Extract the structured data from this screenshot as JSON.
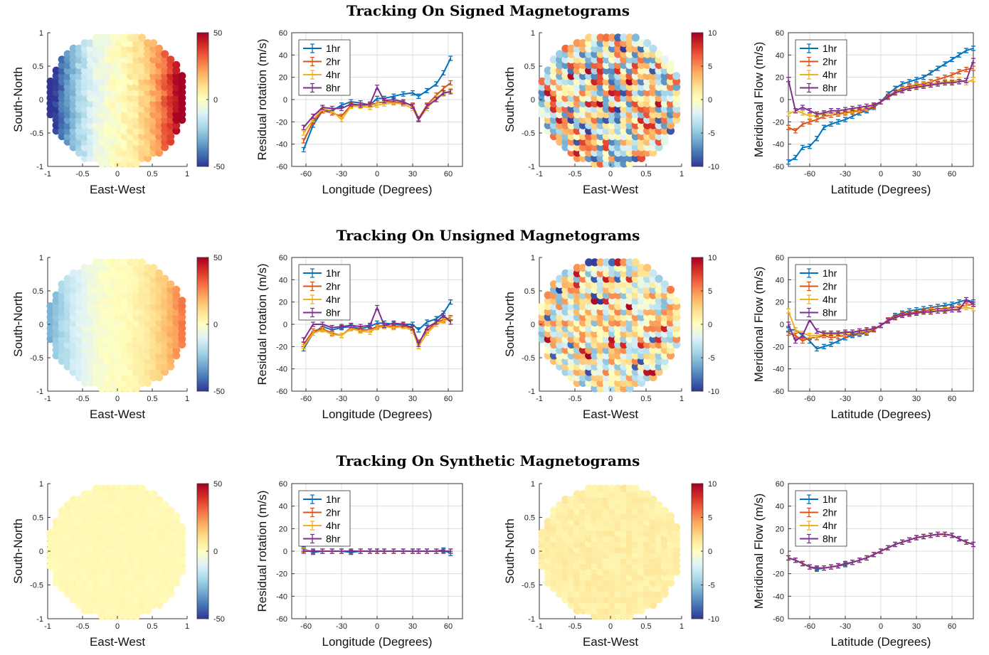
{
  "row_titles": [
    "Tracking On Signed Magnetograms",
    "Tracking On Unsigned Magnetograms",
    "Tracking On Synthetic Magnetograms"
  ],
  "colors": {
    "1hr": "#0072bd",
    "2hr": "#d95319",
    "4hr": "#edb120",
    "8hr": "#7e2f8e"
  },
  "chart_data": [
    {
      "type": "heatmap",
      "title": "Tracking On Signed Magnetograms",
      "xlabel": "East-West",
      "ylabel": "South-North",
      "xlim": [
        -1,
        1
      ],
      "ylim": [
        -1,
        1
      ],
      "xticks": [
        "-1",
        "-0.5",
        "0",
        "0.5",
        "1"
      ],
      "yticks": [
        "1",
        "0.5",
        "0",
        "-0.5",
        "-1"
      ],
      "colorbar_ticks": [
        "50",
        "0",
        "-50"
      ],
      "clim": [
        -50,
        50
      ],
      "pattern": "rotation",
      "amplitude": 50,
      "noise": 0.08
    },
    {
      "type": "line",
      "xlabel": "Longitude (Degrees)",
      "ylabel": "Residual rotation (m/s)",
      "xlim": [
        -72,
        72
      ],
      "ylim": [
        -60,
        60
      ],
      "xticks": [
        "-60",
        "-30",
        "0",
        "30",
        "60"
      ],
      "yticks": [
        "60",
        "40",
        "20",
        "0",
        "-20",
        "-40",
        "-60"
      ],
      "x": [
        -62,
        -54,
        -46,
        -38,
        -30,
        -22,
        -14,
        -6,
        0,
        6,
        14,
        22,
        30,
        35,
        42,
        50,
        56,
        62
      ],
      "series": [
        {
          "name": "1hr",
          "values": [
            -45,
            -23,
            -10,
            -10,
            -5,
            -2,
            -3,
            -5,
            1,
            1,
            3,
            5,
            6,
            3,
            8,
            14,
            24,
            37
          ]
        },
        {
          "name": "2hr",
          "values": [
            -37,
            -20,
            -10,
            -12,
            -15,
            -5,
            -5,
            -5,
            -3,
            -2,
            -2,
            -3,
            -5,
            -17,
            -5,
            4,
            10,
            15
          ]
        },
        {
          "name": "4hr",
          "values": [
            -30,
            -18,
            -8,
            -10,
            -18,
            -6,
            -6,
            -7,
            -5,
            -4,
            -3,
            -4,
            -8,
            -18,
            -8,
            2,
            5,
            8
          ]
        },
        {
          "name": "8hr",
          "values": [
            -25,
            -15,
            -7,
            -8,
            -8,
            -4,
            -5,
            -4,
            11,
            -1,
            0,
            -2,
            -6,
            -18,
            -6,
            0,
            6,
            7
          ]
        }
      ]
    },
    {
      "type": "heatmap",
      "xlabel": "East-West",
      "ylabel": "South-North",
      "xlim": [
        -1,
        1
      ],
      "ylim": [
        -1,
        1
      ],
      "xticks": [
        "-1",
        "-0.5",
        "0",
        "0.5",
        "1"
      ],
      "yticks": [
        "1",
        "0.5",
        "0",
        "-0.5",
        "-1"
      ],
      "colorbar_ticks": [
        "10",
        "5",
        "0",
        "-5",
        "-10"
      ],
      "clim": [
        -10,
        10
      ],
      "pattern": "noise",
      "amplitude": 10,
      "noise": 0.75
    },
    {
      "type": "line",
      "xlabel": "Latitude (Degrees)",
      "ylabel": "Meridional Flow (m/s)",
      "xlim": [
        -78,
        78
      ],
      "ylim": [
        -60,
        60
      ],
      "xticks": [
        "-60",
        "-30",
        "0",
        "30",
        "60"
      ],
      "yticks": [
        "60",
        "40",
        "20",
        "0",
        "-20",
        "-40",
        "-60"
      ],
      "x": [
        -78,
        -72,
        -66,
        -60,
        -54,
        -48,
        -42,
        -36,
        -30,
        -24,
        -18,
        -12,
        -6,
        0,
        6,
        12,
        18,
        24,
        30,
        36,
        42,
        48,
        54,
        60,
        66,
        72,
        78
      ],
      "series": [
        {
          "name": "1hr",
          "values": [
            -56,
            -52,
            -43,
            -42,
            -35,
            -25,
            -22,
            -20,
            -18,
            -15,
            -12,
            -10,
            -7,
            -2,
            5,
            10,
            14,
            16,
            18,
            20,
            24,
            28,
            32,
            36,
            40,
            44,
            46
          ]
        },
        {
          "name": "2hr",
          "values": [
            -25,
            -28,
            -22,
            -20,
            -18,
            -15,
            -14,
            -13,
            -12,
            -11,
            -10,
            -9,
            -6,
            -2,
            3,
            7,
            10,
            12,
            13,
            14,
            16,
            18,
            20,
            22,
            25,
            27,
            28
          ]
        },
        {
          "name": "4hr",
          "values": [
            -13,
            -10,
            -12,
            -15,
            -14,
            -13,
            -12,
            -12,
            -11,
            -10,
            -9,
            -8,
            -5,
            -2,
            2,
            6,
            9,
            11,
            12,
            13,
            14,
            15,
            16,
            16,
            18,
            15,
            18
          ]
        },
        {
          "name": "8hr",
          "values": [
            18,
            -10,
            -7,
            -10,
            -13,
            -12,
            -10,
            -10,
            -9,
            -8,
            -7,
            -6,
            -5,
            -2,
            2,
            6,
            8,
            10,
            11,
            12,
            13,
            14,
            15,
            15,
            16,
            17,
            35
          ]
        }
      ]
    },
    {
      "type": "heatmap",
      "title": "Tracking On Unsigned Magnetograms",
      "xlabel": "East-West",
      "ylabel": "South-North",
      "xlim": [
        -1,
        1
      ],
      "ylim": [
        -1,
        1
      ],
      "xticks": [
        "-1",
        "-0.5",
        "0",
        "0.5",
        "1"
      ],
      "yticks": [
        "1",
        "0.5",
        "0",
        "-0.5",
        "-1"
      ],
      "colorbar_ticks": [
        "50",
        "0",
        "-50"
      ],
      "clim": [
        -50,
        50
      ],
      "pattern": "rotation",
      "amplitude": 25,
      "noise": 0.08
    },
    {
      "type": "line",
      "xlabel": "Longitude (Degrees)",
      "ylabel": "Residual rotation (m/s)",
      "xlim": [
        -72,
        72
      ],
      "ylim": [
        -60,
        60
      ],
      "xticks": [
        "-60",
        "-30",
        "0",
        "30",
        "60"
      ],
      "yticks": [
        "60",
        "40",
        "20",
        "0",
        "-20",
        "-40",
        "-60"
      ],
      "x": [
        -62,
        -54,
        -46,
        -38,
        -30,
        -22,
        -14,
        -6,
        0,
        6,
        14,
        22,
        30,
        35,
        42,
        50,
        56,
        62
      ],
      "series": [
        {
          "name": "1hr",
          "values": [
            -22,
            -8,
            -2,
            -5,
            -3,
            -2,
            -4,
            -2,
            1,
            1,
            0,
            0,
            0,
            -5,
            2,
            5,
            10,
            20
          ]
        },
        {
          "name": "2hr",
          "values": [
            -18,
            -6,
            -4,
            -8,
            -10,
            -3,
            -5,
            -5,
            -2,
            -1,
            -2,
            -1,
            -4,
            -16,
            -6,
            2,
            4,
            6
          ]
        },
        {
          "name": "4hr",
          "values": [
            -20,
            -8,
            -5,
            -9,
            -10,
            -4,
            -6,
            -7,
            -3,
            -2,
            -3,
            -2,
            -6,
            -20,
            -8,
            0,
            3,
            5
          ]
        },
        {
          "name": "8hr",
          "values": [
            -14,
            0,
            0,
            -3,
            -2,
            -1,
            -2,
            -1,
            15,
            -1,
            1,
            0,
            -3,
            -18,
            -3,
            2,
            8,
            2
          ]
        }
      ]
    },
    {
      "type": "heatmap",
      "xlabel": "East-West",
      "ylabel": "South-North",
      "xlim": [
        -1,
        1
      ],
      "ylim": [
        -1,
        1
      ],
      "xticks": [
        "-1",
        "-0.5",
        "0",
        "0.5",
        "1"
      ],
      "yticks": [
        "1",
        "0.5",
        "0",
        "-0.5",
        "-1"
      ],
      "colorbar_ticks": [
        "10",
        "5",
        "0",
        "-5",
        "-10"
      ],
      "clim": [
        -10,
        10
      ],
      "pattern": "noise",
      "amplitude": 10,
      "noise": 0.55
    },
    {
      "type": "line",
      "xlabel": "Latitude (Degrees)",
      "ylabel": "Meridional Flow (m/s)",
      "xlim": [
        -78,
        78
      ],
      "ylim": [
        -60,
        60
      ],
      "xticks": [
        "-60",
        "-30",
        "0",
        "30",
        "60"
      ],
      "yticks": [
        "60",
        "40",
        "20",
        "0",
        "-20",
        "-40",
        "-60"
      ],
      "x": [
        -78,
        -72,
        -66,
        -60,
        -54,
        -48,
        -42,
        -36,
        -30,
        -24,
        -18,
        -12,
        -6,
        0,
        6,
        12,
        18,
        24,
        30,
        36,
        42,
        48,
        54,
        60,
        66,
        72,
        78
      ],
      "series": [
        {
          "name": "1hr",
          "values": [
            -5,
            -5,
            -10,
            -15,
            -22,
            -20,
            -18,
            -15,
            -12,
            -10,
            -9,
            -8,
            -5,
            -1,
            4,
            8,
            10,
            12,
            13,
            14,
            15,
            16,
            17,
            18,
            20,
            22,
            20
          ]
        },
        {
          "name": "2hr",
          "values": [
            -8,
            -10,
            -15,
            -12,
            -12,
            -10,
            -12,
            -11,
            -10,
            -9,
            -8,
            -7,
            -5,
            -1,
            4,
            7,
            9,
            10,
            11,
            12,
            13,
            14,
            14,
            15,
            16,
            17,
            18
          ]
        },
        {
          "name": "4hr",
          "values": [
            12,
            -5,
            -8,
            -10,
            -10,
            -9,
            -9,
            -9,
            -8,
            -7,
            -7,
            -6,
            -4,
            -1,
            3,
            6,
            8,
            9,
            10,
            11,
            12,
            12,
            13,
            13,
            14,
            15,
            14
          ]
        },
        {
          "name": "8hr",
          "values": [
            0,
            -15,
            -10,
            4,
            -6,
            -8,
            -8,
            -8,
            -7,
            -7,
            -6,
            -5,
            -4,
            -1,
            3,
            6,
            8,
            9,
            10,
            11,
            11,
            12,
            12,
            13,
            13,
            22,
            18
          ]
        }
      ]
    },
    {
      "type": "heatmap",
      "title": "Tracking On Synthetic Magnetograms",
      "xlabel": "East-West",
      "ylabel": "South-North",
      "xlim": [
        -1,
        1
      ],
      "ylim": [
        -1,
        1
      ],
      "xticks": [
        "-1",
        "-0.5",
        "0",
        "0.5",
        "1"
      ],
      "yticks": [
        "1",
        "0.5",
        "0",
        "-0.5",
        "-1"
      ],
      "colorbar_ticks": [
        "50",
        "0",
        "-50"
      ],
      "clim": [
        -50,
        50
      ],
      "pattern": "uniform",
      "amplitude": 6,
      "noise": 0.03
    },
    {
      "type": "line",
      "xlabel": "Longitude (Degrees)",
      "ylabel": "Residual rotation (m/s)",
      "xlim": [
        -72,
        72
      ],
      "ylim": [
        -60,
        60
      ],
      "xticks": [
        "-60",
        "-30",
        "0",
        "30",
        "60"
      ],
      "yticks": [
        "60",
        "40",
        "20",
        "0",
        "-20",
        "-40",
        "-60"
      ],
      "x": [
        -62,
        -54,
        -46,
        -38,
        -30,
        -22,
        -14,
        -6,
        0,
        6,
        14,
        22,
        30,
        35,
        42,
        50,
        56,
        62
      ],
      "series": [
        {
          "name": "1hr",
          "values": [
            2,
            -1,
            0,
            0,
            0,
            -1,
            0,
            0,
            0,
            0,
            0,
            0,
            0,
            0,
            0,
            0,
            1,
            -2
          ]
        },
        {
          "name": "2hr",
          "values": [
            1,
            0,
            0,
            0,
            0,
            0,
            0,
            0,
            0,
            0,
            0,
            0,
            0,
            0,
            0,
            0,
            0,
            0
          ]
        },
        {
          "name": "4hr",
          "values": [
            1,
            0,
            0,
            0,
            0,
            0,
            0,
            0,
            0,
            0,
            0,
            0,
            0,
            0,
            0,
            0,
            0,
            0
          ]
        },
        {
          "name": "8hr",
          "values": [
            0,
            0,
            0,
            0,
            0,
            0,
            0,
            0,
            0,
            0,
            0,
            0,
            0,
            0,
            0,
            0,
            0,
            0
          ]
        }
      ]
    },
    {
      "type": "heatmap",
      "xlabel": "East-West",
      "ylabel": "South-North",
      "xlim": [
        -1,
        1
      ],
      "ylim": [
        -1,
        1
      ],
      "xticks": [
        "-1",
        "-0.5",
        "0",
        "0.5",
        "1"
      ],
      "yticks": [
        "1",
        "0.5",
        "0",
        "-0.5",
        "-1"
      ],
      "colorbar_ticks": [
        "10",
        "5",
        "0",
        "-5",
        "-10"
      ],
      "clim": [
        -10,
        10
      ],
      "pattern": "uniform",
      "amplitude": 3,
      "noise": 0.1
    },
    {
      "type": "line",
      "xlabel": "Latitude (Degrees)",
      "ylabel": "Meridional Flow (m/s)",
      "xlim": [
        -78,
        78
      ],
      "ylim": [
        -60,
        60
      ],
      "xticks": [
        "-60",
        "-30",
        "0",
        "30",
        "60"
      ],
      "yticks": [
        "60",
        "40",
        "20",
        "0",
        "-20",
        "-40",
        "-60"
      ],
      "x": [
        -78,
        -72,
        -66,
        -60,
        -54,
        -48,
        -42,
        -36,
        -30,
        -24,
        -18,
        -12,
        -6,
        0,
        6,
        12,
        18,
        24,
        30,
        36,
        42,
        48,
        54,
        60,
        66,
        72,
        78
      ],
      "series": [
        {
          "name": "1hr",
          "values": [
            -6,
            -8,
            -11,
            -14,
            -16,
            -15,
            -14,
            -13,
            -12,
            -10,
            -8,
            -6,
            -3,
            0,
            3,
            6,
            8,
            10,
            12,
            13,
            14,
            15,
            15,
            14,
            11,
            8,
            6
          ]
        },
        {
          "name": "2hr",
          "values": [
            -6,
            -8,
            -11,
            -14,
            -15,
            -15,
            -14,
            -13,
            -11,
            -10,
            -8,
            -6,
            -3,
            0,
            3,
            6,
            8,
            10,
            12,
            13,
            14,
            15,
            15,
            14,
            11,
            8,
            6
          ]
        },
        {
          "name": "4hr",
          "values": [
            -6,
            -8,
            -11,
            -14,
            -15,
            -15,
            -14,
            -13,
            -11,
            -10,
            -8,
            -6,
            -3,
            0,
            3,
            6,
            8,
            10,
            12,
            13,
            14,
            15,
            15,
            14,
            11,
            8,
            6
          ]
        },
        {
          "name": "8hr",
          "values": [
            -6,
            -8,
            -11,
            -14,
            -15,
            -15,
            -14,
            -13,
            -11,
            -10,
            -8,
            -6,
            -3,
            0,
            3,
            6,
            8,
            10,
            12,
            13,
            14,
            15,
            15,
            14,
            11,
            8,
            6
          ]
        }
      ]
    }
  ]
}
